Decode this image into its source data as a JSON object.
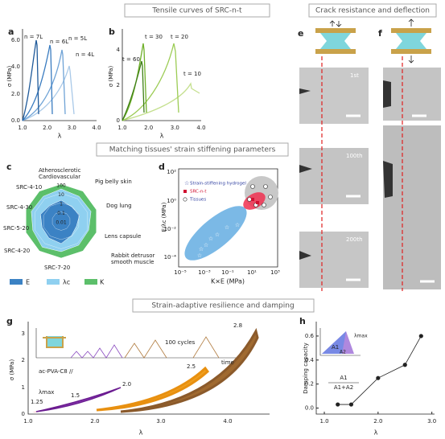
{
  "headers": {
    "tensile": "Tensile curves of SRC-n-t",
    "crack": "Crack resistance and deflection",
    "matching": "Matching tissues' strain stiffening parameters",
    "strain": "Strain-adaptive resilience and damping"
  },
  "panel_labels": [
    "a",
    "b",
    "c",
    "d",
    "e",
    "f",
    "g",
    "h"
  ],
  "a": {
    "y_label": "σ (MPa)",
    "x_label": "λ",
    "yticks": [
      "0.0",
      "2.0",
      "4.0",
      "6.0"
    ],
    "xticks": [
      "1.0",
      "2.0",
      "3.0",
      "4.0"
    ],
    "curves": [
      "n = 7L",
      "n = 6L",
      "n = 5L",
      "n = 4L"
    ]
  },
  "b": {
    "y_label": "σ (MPa)",
    "x_label": "λ",
    "yticks": [
      "0",
      "2",
      "4"
    ],
    "xticks": [
      "1.0",
      "2.0",
      "3.0",
      "4.0"
    ],
    "curves": [
      "t = 60",
      "t = 30",
      "t = 20",
      "t = 10"
    ]
  },
  "c": {
    "axes": [
      [
        "Atherosclerotic",
        "Cardiovascular"
      ],
      [
        "Pig belly skin"
      ],
      [
        "Dog lung"
      ],
      [
        "Lens capsule"
      ],
      [
        "Rabbit detrusor",
        "smooth muscle"
      ],
      [
        "SRC-7-20"
      ],
      [
        "SRC-4-20"
      ],
      [
        "SRC-5-20"
      ],
      [
        "SRC-4-30"
      ],
      [
        "SRC-4-10"
      ]
    ],
    "rings": [
      "0.01",
      "0.1",
      "1",
      "10",
      "100"
    ],
    "legend": [
      "E",
      "λc",
      "K"
    ]
  },
  "d": {
    "y_label": "E/λc (MPa)",
    "x_label": "K×E (MPa)",
    "yticks": [
      "10²",
      "10⁰",
      "10⁻²",
      "10⁻⁴"
    ],
    "xticks": [
      "10⁻⁵",
      "10⁻³",
      "10⁻¹",
      "10¹",
      "10³"
    ],
    "legend": [
      "Strain-stiffening hydrogel",
      "SRC-n-t",
      "Tissues"
    ]
  },
  "e": {
    "frames": [
      "1st",
      "100th",
      "200th"
    ]
  },
  "g": {
    "y_label": "σ (MPa)",
    "x_label": "λ",
    "yticks": [
      "0",
      "1",
      "2",
      "3"
    ],
    "xticks": [
      "1.0",
      "2.0",
      "3.0",
      "4.0"
    ],
    "inset": [
      "100 cycles",
      "time"
    ],
    "material": "ac-PVA-C8 //",
    "lambda_max": "λmax",
    "loops": [
      "1.25",
      "1.5",
      "2.0",
      "2.5",
      "2.8"
    ]
  },
  "h": {
    "y_label": "Damping capacity",
    "x_label": "λ",
    "xlim": [
      0.85,
      3.05
    ],
    "ylim": [
      -0.05,
      0.72
    ],
    "xticks": [
      {
        "value": 1,
        "label": "1.0"
      },
      {
        "value": 2,
        "label": "2.0"
      },
      {
        "value": 3,
        "label": "3.0"
      }
    ],
    "yticks": [
      {
        "value": 0,
        "label": "0.0"
      },
      {
        "value": 0.2,
        "label": "0.2"
      },
      {
        "value": 0.4,
        "label": "0.4"
      },
      {
        "value": 0.6,
        "label": "0.6"
      }
    ],
    "points": {
      "x": [
        1.25,
        1.5,
        2.0,
        2.5,
        2.8
      ],
      "y": [
        0.03,
        0.03,
        0.25,
        0.36,
        0.6
      ]
    },
    "inset": [
      "A1",
      "A2",
      "λmax"
    ],
    "formula": [
      "A1",
      "A1+A2"
    ]
  }
}
